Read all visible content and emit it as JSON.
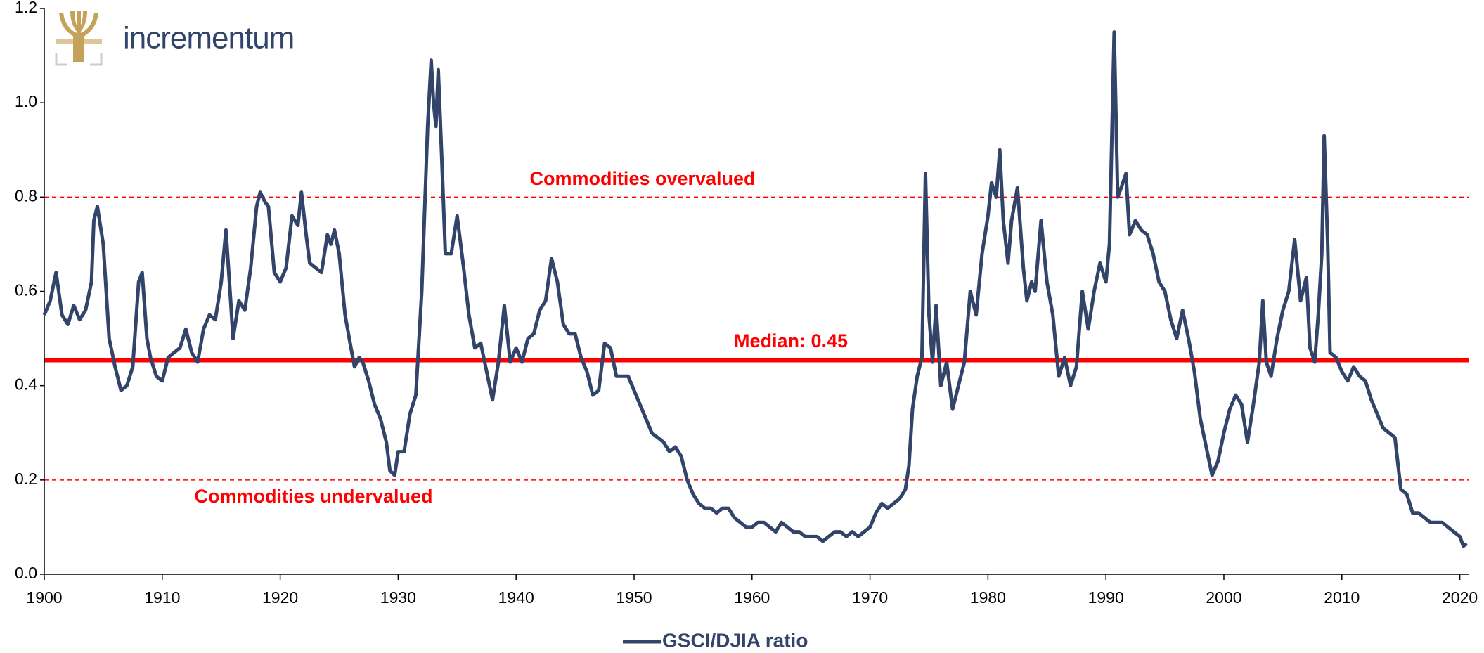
{
  "chart_data": {
    "type": "line",
    "logo": "incrementum",
    "annotations": [
      "Commodities overvalued",
      "Median: 0.45",
      "Commodities undervalued"
    ],
    "reference_lines": [
      {
        "value": 0.8,
        "style": "dashed",
        "color": "#ff0000"
      },
      {
        "value": 0.454,
        "style": "solid",
        "color": "#ff0000"
      },
      {
        "value": 0.2,
        "style": "dashed",
        "color": "#ff0000"
      }
    ],
    "xlim": [
      1900,
      2020.8
    ],
    "xticks": [
      1900,
      1910,
      1920,
      1930,
      1940,
      1950,
      1960,
      1970,
      1980,
      1990,
      2000,
      2010,
      2020
    ],
    "ylim": [
      0,
      1.2
    ],
    "yticks": [
      {
        "value": 0,
        "label": "0.0"
      },
      0.2,
      0.4,
      0.6,
      0.8,
      {
        "value": 1,
        "label": "1.0"
      },
      1.2
    ],
    "series": [
      {
        "name": "GSCI/DJIA ratio",
        "color": "#33446b",
        "x": [
          1900,
          1900.5,
          1901,
          1901.5,
          1902,
          1902.5,
          1903,
          1903.5,
          1904,
          1904.2,
          1904.5,
          1905,
          1905.5,
          1906,
          1906.5,
          1907,
          1907.5,
          1908,
          1908.3,
          1908.7,
          1909,
          1909.5,
          1910,
          1910.5,
          1911,
          1911.5,
          1912,
          1912.5,
          1913,
          1913.5,
          1914,
          1914.5,
          1915,
          1915.4,
          1915.8,
          1916,
          1916.5,
          1917,
          1917.5,
          1918,
          1918.3,
          1918.7,
          1919,
          1919.5,
          1920,
          1920.5,
          1921,
          1921.5,
          1921.8,
          1922.2,
          1922.5,
          1923,
          1923.5,
          1924,
          1924.3,
          1924.6,
          1925,
          1925.5,
          1926,
          1926.3,
          1926.7,
          1927,
          1927.5,
          1928,
          1928.5,
          1929,
          1929.3,
          1929.7,
          1930,
          1930.5,
          1931,
          1931.5,
          1932,
          1932.5,
          1932.8,
          1933,
          1933.2,
          1933.4,
          1933.7,
          1934,
          1934.5,
          1935,
          1935.5,
          1936,
          1936.5,
          1937,
          1937.5,
          1938,
          1938.5,
          1939,
          1939.5,
          1940,
          1940.5,
          1941,
          1941.5,
          1942,
          1942.5,
          1943,
          1943.5,
          1944,
          1944.5,
          1945,
          1945.5,
          1946,
          1946.5,
          1947,
          1947.5,
          1948,
          1948.5,
          1949,
          1949.5,
          1950,
          1950.5,
          1951,
          1951.5,
          1952,
          1952.5,
          1953,
          1953.5,
          1954,
          1954.5,
          1955,
          1955.5,
          1956,
          1956.5,
          1957,
          1957.5,
          1958,
          1958.5,
          1959,
          1959.5,
          1960,
          1960.5,
          1961,
          1961.5,
          1962,
          1962.5,
          1963,
          1963.5,
          1964,
          1964.5,
          1965,
          1965.5,
          1966,
          1966.5,
          1967,
          1967.5,
          1968,
          1968.5,
          1969,
          1969.5,
          1970,
          1970.5,
          1971,
          1971.5,
          1972,
          1972.5,
          1973,
          1973.3,
          1973.6,
          1974,
          1974.4,
          1974.7,
          1975,
          1975.3,
          1975.6,
          1976,
          1976.5,
          1977,
          1977.5,
          1978,
          1978.5,
          1979,
          1979.5,
          1980,
          1980.3,
          1980.7,
          1981,
          1981.3,
          1981.7,
          1982,
          1982.5,
          1983,
          1983.3,
          1983.7,
          1984,
          1984.5,
          1985,
          1985.5,
          1986,
          1986.5,
          1987,
          1987.5,
          1988,
          1988.5,
          1989,
          1989.5,
          1990,
          1990.3,
          1990.7,
          1991,
          1991.3,
          1991.7,
          1992,
          1992.5,
          1993,
          1993.5,
          1994,
          1994.5,
          1995,
          1995.5,
          1996,
          1996.5,
          1997,
          1997.5,
          1998,
          1998.5,
          1999,
          1999.5,
          2000,
          2000.5,
          2001,
          2001.5,
          2002,
          2002.5,
          2003,
          2003.3,
          2003.6,
          2004,
          2004.5,
          2005,
          2005.5,
          2006,
          2006.5,
          2007,
          2007.3,
          2007.7,
          2008,
          2008.3,
          2008.5,
          2008.8,
          2009,
          2009.5,
          2010,
          2010.5,
          2011,
          2011.5,
          2012,
          2012.5,
          2013,
          2013.5,
          2014,
          2014.5,
          2015,
          2015.5,
          2016,
          2016.5,
          2017,
          2017.5,
          2018,
          2018.5,
          2019,
          2019.5,
          2020,
          2020.3,
          2020.6
        ],
        "values": [
          0.55,
          0.58,
          0.64,
          0.55,
          0.53,
          0.57,
          0.54,
          0.56,
          0.62,
          0.75,
          0.78,
          0.7,
          0.5,
          0.44,
          0.39,
          0.4,
          0.44,
          0.62,
          0.64,
          0.5,
          0.46,
          0.42,
          0.41,
          0.46,
          0.47,
          0.48,
          0.52,
          0.47,
          0.45,
          0.52,
          0.55,
          0.54,
          0.62,
          0.73,
          0.58,
          0.5,
          0.58,
          0.56,
          0.65,
          0.78,
          0.81,
          0.79,
          0.78,
          0.64,
          0.62,
          0.65,
          0.76,
          0.74,
          0.81,
          0.72,
          0.66,
          0.65,
          0.64,
          0.72,
          0.7,
          0.73,
          0.68,
          0.55,
          0.48,
          0.44,
          0.46,
          0.45,
          0.41,
          0.36,
          0.33,
          0.28,
          0.22,
          0.21,
          0.26,
          0.26,
          0.34,
          0.38,
          0.6,
          0.95,
          1.09,
          1.0,
          0.95,
          1.07,
          0.88,
          0.68,
          0.68,
          0.76,
          0.66,
          0.55,
          0.48,
          0.49,
          0.43,
          0.37,
          0.45,
          0.57,
          0.45,
          0.48,
          0.45,
          0.5,
          0.51,
          0.56,
          0.58,
          0.67,
          0.62,
          0.53,
          0.51,
          0.51,
          0.46,
          0.43,
          0.38,
          0.39,
          0.49,
          0.48,
          0.42,
          0.42,
          0.42,
          0.39,
          0.36,
          0.33,
          0.3,
          0.29,
          0.28,
          0.26,
          0.27,
          0.25,
          0.2,
          0.17,
          0.15,
          0.14,
          0.14,
          0.13,
          0.14,
          0.14,
          0.12,
          0.11,
          0.1,
          0.1,
          0.11,
          0.11,
          0.1,
          0.09,
          0.11,
          0.1,
          0.09,
          0.09,
          0.08,
          0.08,
          0.08,
          0.07,
          0.08,
          0.09,
          0.09,
          0.08,
          0.09,
          0.08,
          0.09,
          0.1,
          0.13,
          0.15,
          0.14,
          0.15,
          0.16,
          0.18,
          0.23,
          0.35,
          0.42,
          0.46,
          0.85,
          0.55,
          0.45,
          0.57,
          0.4,
          0.45,
          0.35,
          0.4,
          0.45,
          0.6,
          0.55,
          0.68,
          0.76,
          0.83,
          0.8,
          0.9,
          0.75,
          0.66,
          0.75,
          0.82,
          0.65,
          0.58,
          0.62,
          0.6,
          0.75,
          0.62,
          0.55,
          0.42,
          0.46,
          0.4,
          0.44,
          0.6,
          0.52,
          0.6,
          0.66,
          0.62,
          0.7,
          1.15,
          0.8,
          0.82,
          0.85,
          0.72,
          0.75,
          0.73,
          0.72,
          0.68,
          0.62,
          0.6,
          0.54,
          0.5,
          0.56,
          0.5,
          0.43,
          0.33,
          0.27,
          0.21,
          0.24,
          0.3,
          0.35,
          0.38,
          0.36,
          0.28,
          0.36,
          0.45,
          0.58,
          0.45,
          0.42,
          0.5,
          0.56,
          0.6,
          0.71,
          0.58,
          0.63,
          0.48,
          0.45,
          0.55,
          0.68,
          0.93,
          0.7,
          0.47,
          0.46,
          0.43,
          0.41,
          0.44,
          0.42,
          0.41,
          0.37,
          0.34,
          0.31,
          0.3,
          0.29,
          0.18,
          0.17,
          0.13,
          0.13,
          0.12,
          0.11,
          0.11,
          0.11,
          0.1,
          0.09,
          0.08,
          0.06,
          0.065
        ]
      }
    ]
  }
}
